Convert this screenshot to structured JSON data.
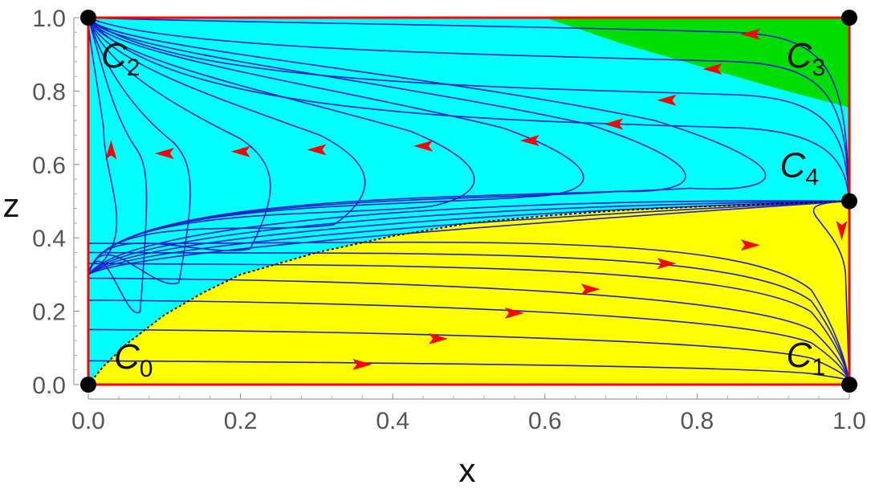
{
  "chart_data": {
    "type": "line",
    "title": "",
    "xlabel": "x",
    "ylabel": "z",
    "xlim": [
      0,
      1
    ],
    "ylim": [
      0,
      1
    ],
    "x_ticks": [
      "0.0",
      "0.2",
      "0.4",
      "0.6",
      "0.8",
      "1.0"
    ],
    "y_ticks": [
      "0.0",
      "0.2",
      "0.4",
      "0.6",
      "0.8",
      "1.0"
    ],
    "grid": false,
    "colors": {
      "upper_region": "#00ffff",
      "lower_region": "#ffff00",
      "corner_region": "#00dd00",
      "boundary": "#ff0000",
      "streamline": "#2020c8",
      "arrow": "#ff0000",
      "separatrix": "#000000",
      "critical_point": "#000000"
    },
    "regions": [
      {
        "id": "lower",
        "color_key": "lower_region",
        "lower_boundary": [
          [
            0,
            0
          ],
          [
            1,
            0
          ]
        ],
        "upper_boundary": "separatrix"
      },
      {
        "id": "upper",
        "color_key": "upper_region",
        "lower_boundary": "separatrix",
        "upper_boundary": [
          [
            0,
            1
          ],
          [
            1,
            1
          ]
        ]
      },
      {
        "id": "corner",
        "color_key": "corner_region",
        "curve": [
          [
            0.6,
            1.0
          ],
          [
            0.7,
            0.93
          ],
          [
            0.8,
            0.87
          ],
          [
            0.9,
            0.81
          ],
          [
            1.0,
            0.755
          ]
        ]
      }
    ],
    "separatrix": [
      [
        0.0,
        0.0
      ],
      [
        0.02,
        0.05
      ],
      [
        0.05,
        0.11
      ],
      [
        0.1,
        0.19
      ],
      [
        0.15,
        0.25
      ],
      [
        0.2,
        0.3
      ],
      [
        0.3,
        0.36
      ],
      [
        0.4,
        0.405
      ],
      [
        0.5,
        0.44
      ],
      [
        0.6,
        0.46
      ],
      [
        0.7,
        0.475
      ],
      [
        0.8,
        0.485
      ],
      [
        0.9,
        0.493
      ],
      [
        1.0,
        0.5
      ]
    ],
    "critical_points": [
      {
        "label": "C",
        "sub": "0",
        "x": 0,
        "z": 0
      },
      {
        "label": "C",
        "sub": "1",
        "x": 1,
        "z": 0
      },
      {
        "label": "C",
        "sub": "2",
        "x": 0,
        "z": 1
      },
      {
        "label": "C",
        "sub": "3",
        "x": 1,
        "z": 1
      },
      {
        "label": "C",
        "sub": "4",
        "x": 1,
        "z": 0.5
      }
    ],
    "upper_turning_curves": [
      {
        "turn_x": 0.08,
        "turn_z": 0.57
      },
      {
        "turn_x": 0.14,
        "turn_z": 0.58
      },
      {
        "turn_x": 0.25,
        "turn_z": 0.58
      },
      {
        "turn_x": 0.38,
        "turn_z": 0.58
      },
      {
        "turn_x": 0.53,
        "turn_z": 0.58
      },
      {
        "turn_x": 0.68,
        "turn_z": 0.58
      },
      {
        "turn_x": 0.82,
        "turn_z": 0.58
      },
      {
        "turn_x": 0.93,
        "turn_z": 0.58
      }
    ],
    "upper_top_curves": [
      {
        "start_z": 0.69
      },
      {
        "start_z": 0.78
      },
      {
        "start_z": 0.87
      },
      {
        "start_z": 0.95
      }
    ],
    "lower_curves": [
      {
        "z0": 0.065,
        "z1": 0.05
      },
      {
        "z0": 0.15,
        "z1": 0.12
      },
      {
        "z0": 0.23,
        "z1": 0.19
      },
      {
        "z0": 0.29,
        "z1": 0.25
      },
      {
        "z0": 0.33,
        "z1": 0.33
      },
      {
        "z0": 0.36,
        "z1": 0.38
      },
      {
        "z0": 0.385,
        "z1": 0.43
      }
    ],
    "arrows_lower": [
      {
        "x": 0.36,
        "z": 0.055,
        "dir": "right"
      },
      {
        "x": 0.46,
        "z": 0.125,
        "dir": "right"
      },
      {
        "x": 0.56,
        "z": 0.195,
        "dir": "right"
      },
      {
        "x": 0.66,
        "z": 0.26,
        "dir": "right"
      },
      {
        "x": 0.76,
        "z": 0.33,
        "dir": "right"
      },
      {
        "x": 0.87,
        "z": 0.38,
        "dir": "right"
      },
      {
        "x": 0.99,
        "z": 0.42,
        "dir": "down"
      }
    ],
    "arrows_upper": [
      {
        "x": 0.03,
        "z": 0.64,
        "dir": "up"
      },
      {
        "x": 0.1,
        "z": 0.63,
        "dir": "left"
      },
      {
        "x": 0.2,
        "z": 0.635,
        "dir": "left"
      },
      {
        "x": 0.3,
        "z": 0.64,
        "dir": "left"
      },
      {
        "x": 0.44,
        "z": 0.65,
        "dir": "left"
      },
      {
        "x": 0.58,
        "z": 0.665,
        "dir": "left"
      },
      {
        "x": 0.69,
        "z": 0.71,
        "dir": "left"
      },
      {
        "x": 0.76,
        "z": 0.775,
        "dir": "left"
      },
      {
        "x": 0.82,
        "z": 0.86,
        "dir": "left"
      },
      {
        "x": 0.87,
        "z": 0.955,
        "dir": "left"
      }
    ]
  }
}
